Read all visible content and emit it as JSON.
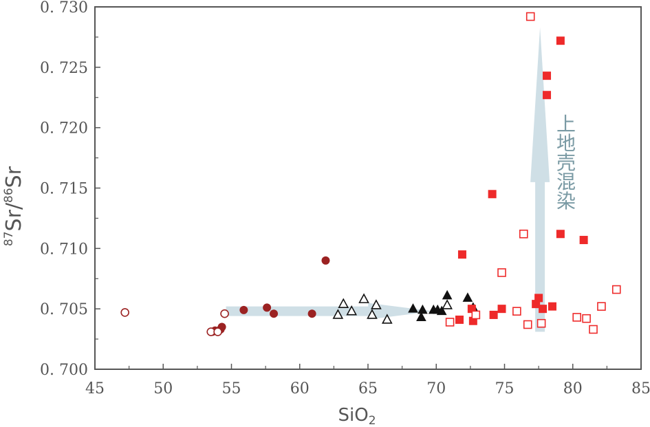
{
  "chart_data": {
    "type": "scatter",
    "title": "",
    "xlabel": {
      "main": "SiO",
      "sub": "2"
    },
    "ylabel": {
      "sup1": "87",
      "main1": "Sr/",
      "sup2": "86",
      "main2": "Sr"
    },
    "xlim": [
      45,
      85
    ],
    "ylim": [
      0.7,
      0.73
    ],
    "x_ticks": [
      45,
      50,
      55,
      60,
      65,
      70,
      75,
      80,
      85
    ],
    "y_ticks": [
      0.7,
      0.705,
      0.71,
      0.715,
      0.72,
      0.725,
      0.73
    ],
    "x_tick_labels": [
      "45",
      "50",
      "55",
      "60",
      "65",
      "70",
      "75",
      "80",
      "85"
    ],
    "y_tick_labels": [
      "0. 700",
      "0. 705",
      "0. 710",
      "0. 715",
      "0. 720",
      "0. 725",
      "0. 730"
    ],
    "grid": false,
    "colors": {
      "dark_red": "#9b2222",
      "red": "#ee2a2a",
      "black": "#111111",
      "arrow": "#cfdfe6",
      "axis": "#555555"
    },
    "series": [
      {
        "marker": "circle-filled",
        "color": "#9b2222",
        "x": [
          53.6,
          53.8,
          54.2,
          54.3,
          55.9,
          57.6,
          58.1,
          60.9,
          61.9
        ],
        "y": [
          0.7031,
          0.7032,
          0.7033,
          0.7035,
          0.7049,
          0.7051,
          0.7046,
          0.7046,
          0.709
        ]
      },
      {
        "marker": "circle-open",
        "color": "#9b2222",
        "x": [
          47.2,
          53.5,
          54.0,
          54.5
        ],
        "y": [
          0.7047,
          0.7031,
          0.7031,
          0.7046
        ]
      },
      {
        "marker": "triangle-open",
        "color": "#111111",
        "x": [
          62.8,
          63.2,
          63.8,
          64.7,
          65.3,
          65.6,
          66.4,
          70.8
        ],
        "y": [
          0.7045,
          0.7054,
          0.7048,
          0.7058,
          0.7045,
          0.7053,
          0.7041,
          0.7053
        ]
      },
      {
        "marker": "triangle-filled",
        "color": "#111111",
        "x": [
          68.3,
          68.9,
          69.0,
          69.8,
          70.1,
          70.4,
          70.8,
          72.3,
          72.7
        ],
        "y": [
          0.705,
          0.7043,
          0.7049,
          0.7049,
          0.7049,
          0.7048,
          0.7061,
          0.7059,
          0.7051
        ]
      },
      {
        "marker": "square-filled",
        "color": "#ee2a2a",
        "x": [
          71.7,
          71.9,
          72.6,
          72.7,
          74.1,
          74.2,
          74.8,
          77.3,
          77.5,
          77.8,
          78.1,
          78.1,
          78.5,
          79.1,
          79.1,
          80.8
        ],
        "y": [
          0.7041,
          0.7095,
          0.705,
          0.704,
          0.7145,
          0.7045,
          0.705,
          0.7054,
          0.7059,
          0.705,
          0.7243,
          0.7227,
          0.7052,
          0.7272,
          0.7112,
          0.7107
        ]
      },
      {
        "marker": "square-open",
        "color": "#ee2a2a",
        "x": [
          71.0,
          72.9,
          74.8,
          75.9,
          76.4,
          76.7,
          76.9,
          77.7,
          80.3,
          81.0,
          81.5,
          82.1,
          83.2
        ],
        "y": [
          0.7039,
          0.7045,
          0.708,
          0.7048,
          0.7112,
          0.7037,
          0.7292,
          0.7038,
          0.7043,
          0.7042,
          0.7033,
          0.7052,
          0.7066
        ]
      }
    ],
    "annotations": {
      "vertical_text": [
        "上",
        "地",
        "壳",
        "混",
        "染"
      ],
      "horizontal_arrow": {
        "from": [
          54.6,
          0.7048
        ],
        "to": [
          69.8,
          0.7048
        ]
      },
      "vertical_arrow": {
        "x": 77.6,
        "from_y": 0.7031,
        "to_y": 0.7283
      }
    }
  }
}
